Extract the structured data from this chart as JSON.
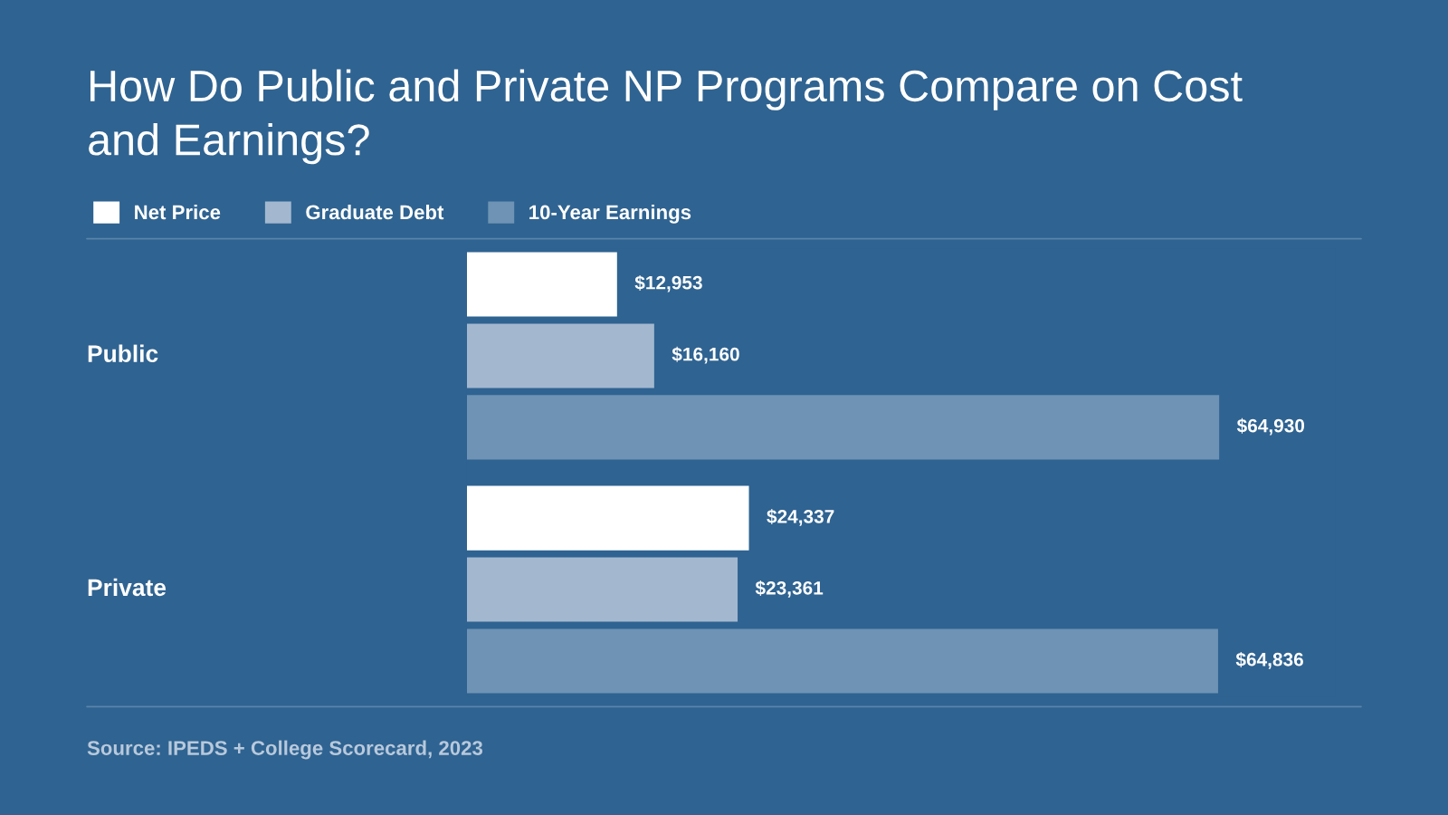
{
  "chart_data": {
    "type": "bar",
    "orientation": "horizontal",
    "title": "How Do Public and Private NP Programs Compare on Cost and Earnings?",
    "categories": [
      "Public",
      "Private"
    ],
    "series": [
      {
        "name": "Net Price",
        "color": "#ffffff",
        "values": [
          12953,
          24337
        ],
        "value_labels": [
          "$12,953",
          "$24,337"
        ]
      },
      {
        "name": "Graduate Debt",
        "color": "#a3b8cf",
        "values": [
          16160,
          23361
        ],
        "value_labels": [
          "$16,160",
          "$23,361"
        ]
      },
      {
        "name": "10-Year Earnings",
        "color": "#6f93b5",
        "values": [
          64930,
          64836
        ],
        "value_labels": [
          "$64,930",
          "$64,836"
        ]
      }
    ],
    "legend": "top left",
    "annotations": [
      "Source: IPEDS + College Scorecard, 2023"
    ]
  }
}
